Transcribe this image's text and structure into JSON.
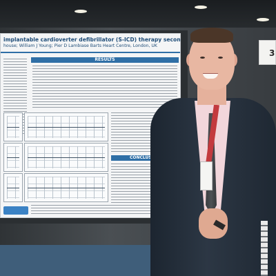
{
  "poster": {
    "title": "implantable cardioverter defibrillator (S-ICD) therapy secondary to renal failure",
    "authors": "house; William J Young; Pier D Lambiase Barts Heart Centre, London, UK",
    "section_results": "RESULTS",
    "section_conclusion": "CONCLUSION"
  },
  "booth_sign": {
    "label": "3"
  },
  "colors": {
    "poster_accent": "#2f6fa6",
    "lanyard": "#c33a3e",
    "jacket": "#2c3744",
    "floor": "#3f5e7a"
  }
}
